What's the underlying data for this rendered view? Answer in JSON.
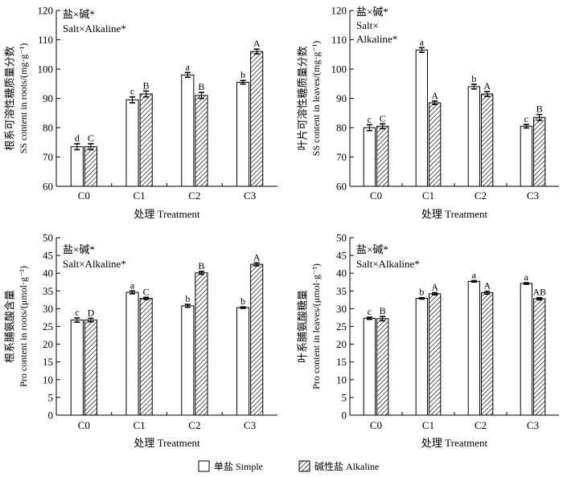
{
  "legend": {
    "simple_label": "单盐 Simple",
    "alkaline_label": "碱性盐 Alkaline"
  },
  "chart_data": [
    {
      "type": "bar",
      "panel": "top-left",
      "categories": [
        "C0",
        "C1",
        "C2",
        "C3"
      ],
      "series": [
        {
          "name": "单盐 Simple",
          "values": [
            73.5,
            89.5,
            98.0,
            95.5
          ],
          "errors": [
            1.0,
            1.0,
            0.8,
            0.6
          ],
          "letters": [
            "d",
            "c",
            "a",
            "b"
          ]
        },
        {
          "name": "碱性盐 Alkaline",
          "values": [
            73.5,
            91.5,
            91.0,
            106.0
          ],
          "errors": [
            1.0,
            1.0,
            1.0,
            0.8
          ],
          "letters": [
            "C",
            "B",
            "B",
            "A"
          ]
        }
      ],
      "ylim": [
        60,
        120
      ],
      "yticks": [
        60,
        70,
        80,
        90,
        100,
        110,
        120
      ],
      "ylabel_zh": "根系可溶性糖质量分数",
      "ylabel_en": "SS content in roots/(mg·g⁻¹)",
      "xlabel": "处理 Treatment",
      "annotation_lines": [
        "盐×碱*",
        "Salt×Alkaline*"
      ]
    },
    {
      "type": "bar",
      "panel": "top-right",
      "categories": [
        "C0",
        "C1",
        "C2",
        "C3"
      ],
      "series": [
        {
          "name": "单盐 Simple",
          "values": [
            80.0,
            106.5,
            94.0,
            80.5
          ],
          "errors": [
            1.0,
            0.8,
            0.8,
            0.6
          ],
          "letters": [
            "c",
            "a",
            "b",
            "c"
          ]
        },
        {
          "name": "碱性盐 Alkaline",
          "values": [
            80.5,
            88.5,
            91.5,
            83.5
          ],
          "errors": [
            0.8,
            0.6,
            0.8,
            1.0
          ],
          "letters": [
            "C",
            "A",
            "A",
            "B"
          ]
        }
      ],
      "ylim": [
        60,
        120
      ],
      "yticks": [
        60,
        70,
        80,
        90,
        100,
        110,
        120
      ],
      "ylabel_zh": "叶片可溶性糖质量分数",
      "ylabel_en": "SS content in leaves/(mg·g⁻¹)",
      "xlabel": "处理 Treatment",
      "annotation_lines": [
        "盐×碱*",
        "Salt×",
        "Alkaline*"
      ]
    },
    {
      "type": "bar",
      "panel": "bottom-left",
      "categories": [
        "C0",
        "C1",
        "C2",
        "C3"
      ],
      "series": [
        {
          "name": "单盐 Simple",
          "values": [
            26.8,
            34.6,
            30.8,
            30.3
          ],
          "errors": [
            0.6,
            0.4,
            0.4,
            0.2
          ],
          "letters": [
            "c",
            "a",
            "b",
            "b"
          ]
        },
        {
          "name": "碱性盐 Alkaline",
          "values": [
            26.8,
            32.9,
            40.1,
            42.5
          ],
          "errors": [
            0.5,
            0.3,
            0.4,
            0.4
          ],
          "letters": [
            "D",
            "C",
            "B",
            "A"
          ]
        }
      ],
      "ylim": [
        0,
        50
      ],
      "yticks": [
        0,
        5,
        10,
        15,
        20,
        25,
        30,
        35,
        40,
        45,
        50
      ],
      "ylabel_zh": "根系脯氨酸含量",
      "ylabel_en": "Pro content in roots/(μmol·g⁻¹)",
      "xlabel": "处理 Treatment",
      "annotation_lines": [
        "盐×碱*",
        "Salt×Alkaline*"
      ]
    },
    {
      "type": "bar",
      "panel": "bottom-right",
      "categories": [
        "C0",
        "C1",
        "C2",
        "C3"
      ],
      "series": [
        {
          "name": "单盐 Simple",
          "values": [
            27.3,
            32.9,
            37.7,
            37.1
          ],
          "errors": [
            0.3,
            0.2,
            0.2,
            0.2
          ],
          "letters": [
            "c",
            "b",
            "a",
            "a"
          ]
        },
        {
          "name": "碱性盐 Alkaline",
          "values": [
            27.2,
            34.2,
            34.5,
            32.8
          ],
          "errors": [
            0.6,
            0.3,
            0.4,
            0.3
          ],
          "letters": [
            "B",
            "A",
            "A",
            "AB"
          ]
        }
      ],
      "ylim": [
        0,
        50
      ],
      "yticks": [
        0,
        5,
        10,
        15,
        20,
        25,
        30,
        35,
        40,
        45,
        50
      ],
      "ylabel_zh": "叶系脯氨酸糖量",
      "ylabel_en": "Pro content in leaves/(μmol·g⁻¹)",
      "xlabel": "处理 Treatment",
      "annotation_lines": [
        "盐×碱*",
        "Salt×Alkaline*"
      ]
    }
  ]
}
